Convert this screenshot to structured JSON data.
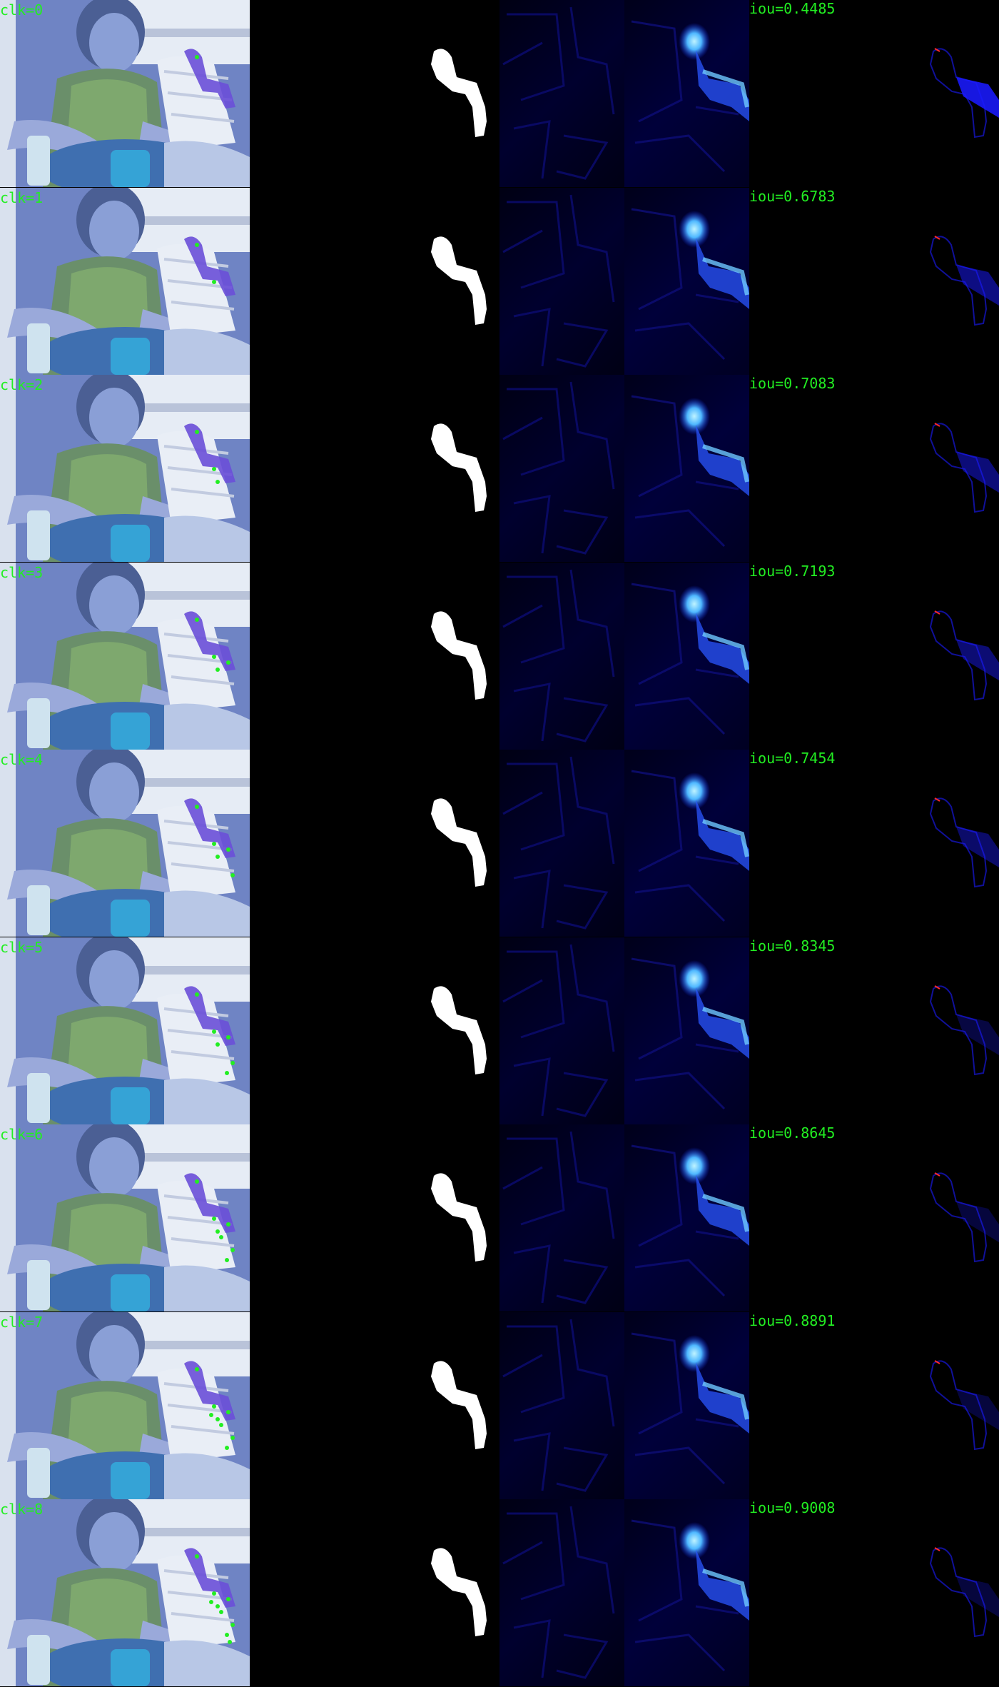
{
  "rows": [
    {
      "click_label": "clk=0",
      "iou_label": "iou=0.4485",
      "click_index": 0,
      "iou": 0.4485
    },
    {
      "click_label": "clk=1",
      "iou_label": "iou=0.6783",
      "click_index": 1,
      "iou": 0.6783
    },
    {
      "click_label": "clk=2",
      "iou_label": "iou=0.7083",
      "click_index": 2,
      "iou": 0.7083
    },
    {
      "click_label": "clk=3",
      "iou_label": "iou=0.7193",
      "click_index": 3,
      "iou": 0.7193
    },
    {
      "click_label": "clk=4",
      "iou_label": "iou=0.7454",
      "click_index": 4,
      "iou": 0.7454
    },
    {
      "click_label": "clk=5",
      "iou_label": "iou=0.8345",
      "click_index": 5,
      "iou": 0.8345
    },
    {
      "click_label": "clk=6",
      "iou_label": "iou=0.8645",
      "click_index": 6,
      "iou": 0.8645
    },
    {
      "click_label": "clk=7",
      "iou_label": "iou=0.8891",
      "click_index": 7,
      "iou": 0.8891
    },
    {
      "click_label": "clk=8",
      "iou_label": "iou=0.9008",
      "click_index": 8,
      "iou": 0.9008
    }
  ],
  "colors": {
    "label_text": "#22ee22",
    "background": "#000000",
    "mask_fill": "#ffffff",
    "heatmap_hot": "#7fe0ff",
    "heatmap_mid": "#1a3bff",
    "error_negative": "#1a1aff",
    "error_positive": "#ff2a2a",
    "click_point": "#22ee22"
  },
  "panels": [
    "input-with-clicks",
    "ground-truth-mask",
    "feature-map",
    "prediction-heatmap",
    "iou-score",
    "error-map"
  ]
}
